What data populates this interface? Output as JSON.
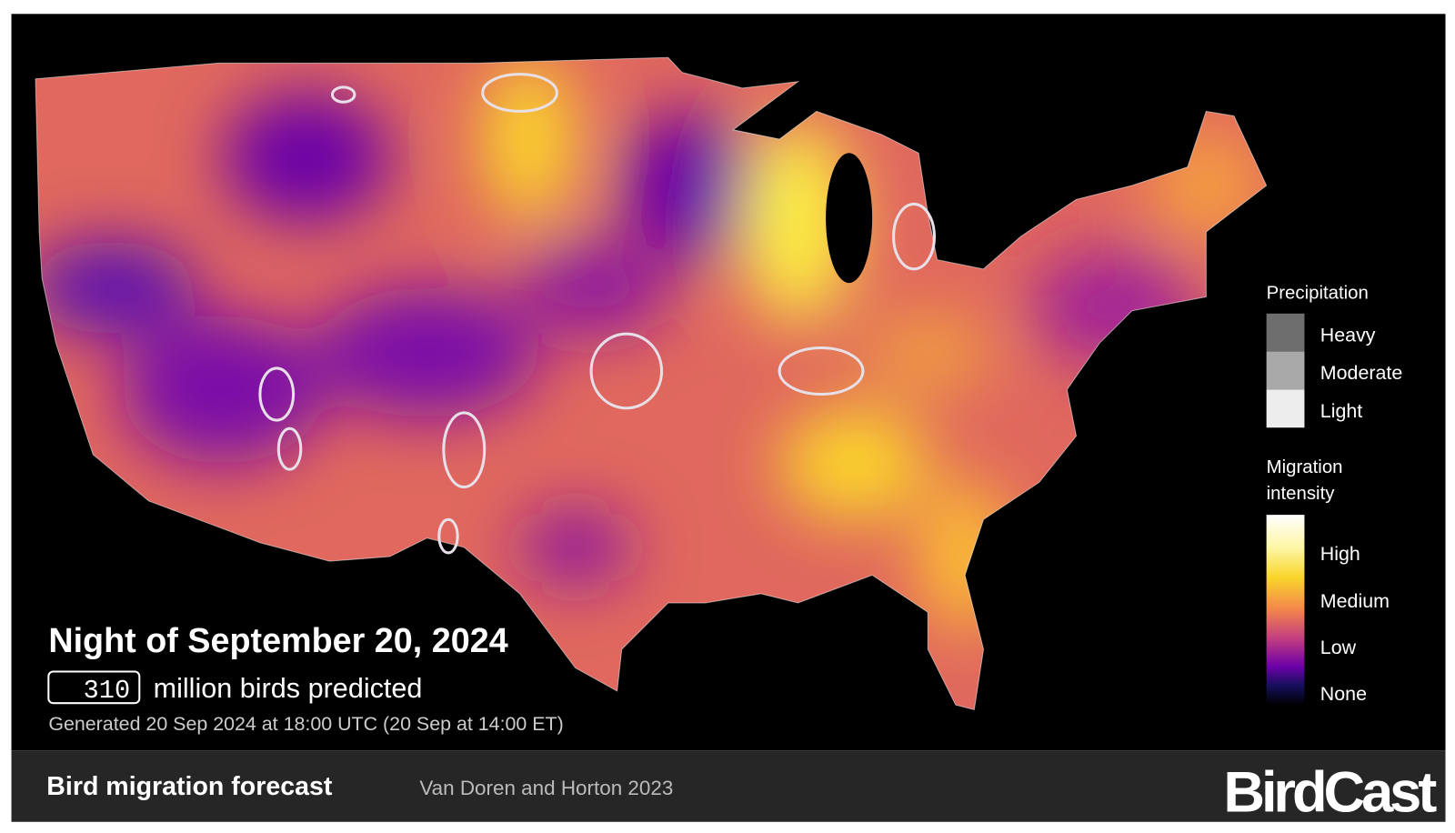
{
  "header": {
    "title": "Night of September 20, 2024",
    "count": 310,
    "count_label": "million birds predicted",
    "generated": "Generated 20 Sep 2024 at 18:00 UTC (20 Sep at 14:00 ET)"
  },
  "legend": {
    "precipitation": {
      "title": "Precipitation",
      "levels": [
        "Heavy",
        "Moderate",
        "Light"
      ]
    },
    "intensity": {
      "title": [
        "Migration",
        "intensity"
      ],
      "levels": [
        "High",
        "Medium",
        "Low",
        "None"
      ]
    }
  },
  "footer": {
    "title": "Bird migration forecast",
    "citation": "Van Doren and Horton 2023",
    "brand": "BirdCast"
  }
}
